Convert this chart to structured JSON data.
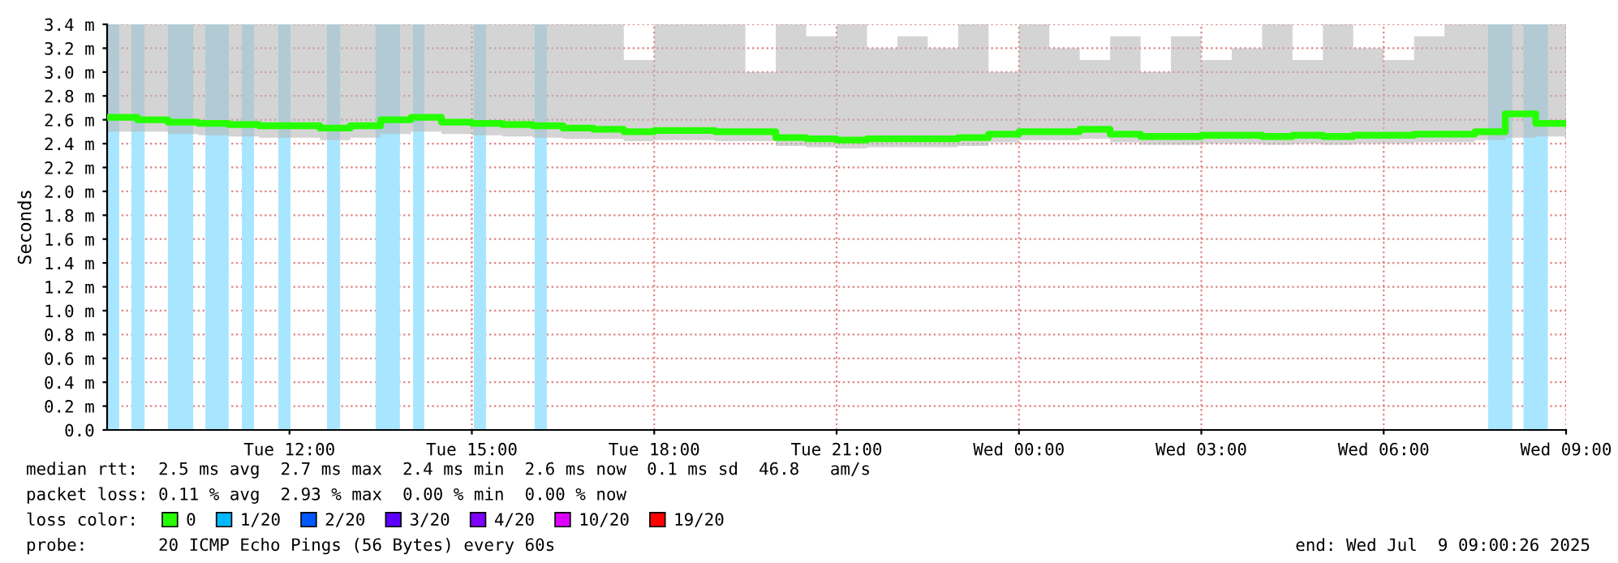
{
  "chart_data": {
    "type": "step",
    "ylabel": "Seconds",
    "x": [
      "2025-07-08T09:00",
      "2025-07-08T09:30",
      "2025-07-08T10:00",
      "2025-07-08T10:30",
      "2025-07-08T11:00",
      "2025-07-08T11:30",
      "2025-07-08T12:00",
      "2025-07-08T12:30",
      "2025-07-08T13:00",
      "2025-07-08T13:30",
      "2025-07-08T14:00",
      "2025-07-08T14:30",
      "2025-07-08T15:00",
      "2025-07-08T15:30",
      "2025-07-08T16:00",
      "2025-07-08T16:30",
      "2025-07-08T17:00",
      "2025-07-08T17:30",
      "2025-07-08T18:00",
      "2025-07-08T18:30",
      "2025-07-08T19:00",
      "2025-07-08T19:30",
      "2025-07-08T20:00",
      "2025-07-08T20:30",
      "2025-07-08T21:00",
      "2025-07-08T21:30",
      "2025-07-08T22:00",
      "2025-07-08T22:30",
      "2025-07-08T23:00",
      "2025-07-08T23:30",
      "2025-07-09T00:00",
      "2025-07-09T00:30",
      "2025-07-09T01:00",
      "2025-07-09T01:30",
      "2025-07-09T02:00",
      "2025-07-09T02:30",
      "2025-07-09T03:00",
      "2025-07-09T03:30",
      "2025-07-09T04:00",
      "2025-07-09T04:30",
      "2025-07-09T05:00",
      "2025-07-09T05:30",
      "2025-07-09T06:00",
      "2025-07-09T06:30",
      "2025-07-09T07:00",
      "2025-07-09T07:30",
      "2025-07-09T08:00",
      "2025-07-09T08:30",
      "2025-07-09T09:00"
    ],
    "xlim": [
      "2025-07-08T09:00",
      "2025-07-09T09:00"
    ],
    "xticks": [
      {
        "value": "2025-07-08T12:00",
        "label": "Tue 12:00"
      },
      {
        "value": "2025-07-08T15:00",
        "label": "Tue 15:00"
      },
      {
        "value": "2025-07-08T18:00",
        "label": "Tue 18:00"
      },
      {
        "value": "2025-07-08T21:00",
        "label": "Tue 21:00"
      },
      {
        "value": "2025-07-09T00:00",
        "label": "Wed 00:00"
      },
      {
        "value": "2025-07-09T03:00",
        "label": "Wed 03:00"
      },
      {
        "value": "2025-07-09T06:00",
        "label": "Wed 06:00"
      },
      {
        "value": "2025-07-09T09:00",
        "label": "Wed 09:00"
      }
    ],
    "ylim": [
      0,
      3.4
    ],
    "yticks": [
      {
        "value": 0,
        "label": "0.0"
      },
      {
        "value": 0.2,
        "label": "0.2 m"
      },
      {
        "value": 0.4,
        "label": "0.4 m"
      },
      {
        "value": 0.6,
        "label": "0.6 m"
      },
      {
        "value": 0.8,
        "label": "0.8 m"
      },
      {
        "value": 1.0,
        "label": "1.0 m"
      },
      {
        "value": 1.2,
        "label": "1.2 m"
      },
      {
        "value": 1.4,
        "label": "1.4 m"
      },
      {
        "value": 1.6,
        "label": "1.6 m"
      },
      {
        "value": 1.8,
        "label": "1.8 m"
      },
      {
        "value": 2.0,
        "label": "2.0 m"
      },
      {
        "value": 2.2,
        "label": "2.2 m"
      },
      {
        "value": 2.4,
        "label": "2.4 m"
      },
      {
        "value": 2.6,
        "label": "2.6 m"
      },
      {
        "value": 2.8,
        "label": "2.8 m"
      },
      {
        "value": 3.0,
        "label": "3.0 m"
      },
      {
        "value": 3.2,
        "label": "3.2 m"
      },
      {
        "value": 3.4,
        "label": "3.4 m"
      }
    ],
    "grid": true,
    "line_style": "solid",
    "legend": "bottom",
    "legend_title": "loss color:",
    "series": [
      {
        "name": "0",
        "color": "#26ff00",
        "values": [
          2.62,
          2.6,
          2.58,
          2.57,
          2.56,
          2.55,
          2.55,
          2.53,
          2.55,
          2.6,
          2.62,
          2.58,
          2.57,
          2.56,
          2.55,
          2.53,
          2.52,
          2.5,
          2.51,
          2.51,
          2.5,
          2.5,
          2.45,
          2.44,
          2.43,
          2.44,
          2.44,
          2.44,
          2.45,
          2.48,
          2.5,
          2.5,
          2.52,
          2.48,
          2.46,
          2.46,
          2.47,
          2.47,
          2.46,
          2.47,
          2.46,
          2.47,
          2.47,
          2.48,
          2.48,
          2.5,
          2.65,
          2.57,
          2.57
        ],
        "lower": [
          2.5,
          2.5,
          2.48,
          2.47,
          2.46,
          2.45,
          2.45,
          2.43,
          2.45,
          2.48,
          2.5,
          2.48,
          2.47,
          2.46,
          2.45,
          2.44,
          2.44,
          2.42,
          2.43,
          2.43,
          2.42,
          2.42,
          2.38,
          2.37,
          2.36,
          2.37,
          2.37,
          2.37,
          2.38,
          2.41,
          2.43,
          2.43,
          2.44,
          2.41,
          2.39,
          2.39,
          2.4,
          2.4,
          2.39,
          2.4,
          2.39,
          2.4,
          2.4,
          2.41,
          2.41,
          2.43,
          2.45,
          2.46,
          2.46
        ],
        "upper": [
          3.4,
          3.4,
          3.4,
          3.4,
          3.4,
          3.4,
          3.4,
          3.4,
          3.4,
          3.4,
          3.4,
          3.4,
          3.4,
          3.4,
          3.4,
          3.4,
          3.4,
          3.1,
          3.4,
          3.4,
          3.4,
          3.0,
          3.4,
          3.3,
          3.4,
          3.2,
          3.3,
          3.2,
          3.4,
          3.0,
          3.4,
          3.2,
          3.1,
          3.3,
          3.0,
          3.3,
          3.1,
          3.2,
          3.4,
          3.1,
          3.4,
          3.2,
          3.1,
          3.3,
          3.4,
          3.4,
          3.4,
          3.4,
          3.4
        ]
      },
      {
        "name": "1/20",
        "color": "#00b8ff",
        "values": [
          null,
          null,
          null,
          null,
          null,
          null,
          null,
          null,
          null,
          null,
          null,
          null,
          null,
          null,
          null,
          null,
          null,
          null,
          null,
          null,
          null,
          null,
          null,
          null,
          null,
          null,
          null,
          null,
          null,
          null,
          null,
          null,
          null,
          null,
          null,
          null,
          null,
          null,
          null,
          null,
          null,
          null,
          null,
          null,
          null,
          null,
          null,
          null,
          null
        ]
      },
      {
        "name": "2/20",
        "color": "#0059ff",
        "values": [
          null,
          null,
          null,
          null,
          null,
          null,
          null,
          null,
          null,
          null,
          null,
          null,
          null,
          null,
          null,
          null,
          null,
          null,
          null,
          null,
          null,
          null,
          null,
          null,
          null,
          null,
          null,
          null,
          null,
          null,
          null,
          null,
          null,
          null,
          null,
          null,
          null,
          null,
          null,
          null,
          null,
          null,
          null,
          null,
          null,
          null,
          null,
          null,
          null
        ]
      },
      {
        "name": "3/20",
        "color": "#5e00ff",
        "values": [
          null,
          null,
          null,
          null,
          null,
          null,
          null,
          null,
          null,
          null,
          null,
          null,
          null,
          null,
          null,
          null,
          null,
          null,
          null,
          null,
          null,
          null,
          null,
          null,
          null,
          null,
          null,
          null,
          null,
          null,
          null,
          null,
          null,
          null,
          null,
          null,
          null,
          null,
          null,
          null,
          null,
          null,
          null,
          null,
          null,
          null,
          null,
          null,
          null
        ]
      },
      {
        "name": "4/20",
        "color": "#7e00ff",
        "values": [
          null,
          null,
          null,
          null,
          null,
          null,
          null,
          null,
          null,
          null,
          null,
          null,
          null,
          null,
          null,
          null,
          null,
          null,
          null,
          null,
          null,
          null,
          null,
          null,
          null,
          null,
          null,
          null,
          null,
          null,
          null,
          null,
          null,
          null,
          null,
          null,
          null,
          null,
          null,
          null,
          null,
          null,
          null,
          null,
          null,
          null,
          null,
          null,
          null
        ]
      },
      {
        "name": "10/20",
        "color": "#dd00ff",
        "values": [
          null,
          null,
          null,
          null,
          null,
          null,
          null,
          null,
          null,
          null,
          null,
          null,
          null,
          null,
          null,
          null,
          null,
          null,
          null,
          null,
          null,
          null,
          null,
          null,
          null,
          null,
          null,
          null,
          null,
          null,
          null,
          null,
          null,
          null,
          null,
          null,
          null,
          null,
          null,
          null,
          null,
          null,
          null,
          null,
          null,
          null,
          null,
          null,
          null
        ]
      },
      {
        "name": "19/20",
        "color": "#ff0000",
        "values": [
          null,
          null,
          null,
          null,
          null,
          null,
          null,
          null,
          null,
          null,
          null,
          null,
          null,
          null,
          null,
          null,
          null,
          null,
          null,
          null,
          null,
          null,
          null,
          null,
          null,
          null,
          null,
          null,
          null,
          null,
          null,
          null,
          null,
          null,
          null,
          null,
          null,
          null,
          null,
          null,
          null,
          null,
          null,
          null,
          null,
          null,
          null,
          null,
          null
        ]
      }
    ],
    "bands": [
      {
        "axis": "x",
        "from": "2025-07-08T09:00",
        "to": "2025-07-08T09:12",
        "color": "#a8e6ff"
      },
      {
        "axis": "x",
        "from": "2025-07-08T09:24",
        "to": "2025-07-08T09:37",
        "color": "#a8e6ff"
      },
      {
        "axis": "x",
        "from": "2025-07-08T10:00",
        "to": "2025-07-08T10:25",
        "color": "#a8e6ff"
      },
      {
        "axis": "x",
        "from": "2025-07-08T10:37",
        "to": "2025-07-08T11:00",
        "color": "#a8e6ff"
      },
      {
        "axis": "x",
        "from": "2025-07-08T11:13",
        "to": "2025-07-08T11:25",
        "color": "#a8e6ff"
      },
      {
        "axis": "x",
        "from": "2025-07-08T11:49",
        "to": "2025-07-08T12:01",
        "color": "#a8e6ff"
      },
      {
        "axis": "x",
        "from": "2025-07-08T12:37",
        "to": "2025-07-08T12:50",
        "color": "#a8e6ff"
      },
      {
        "axis": "x",
        "from": "2025-07-08T13:25",
        "to": "2025-07-08T13:49",
        "color": "#a8e6ff"
      },
      {
        "axis": "x",
        "from": "2025-07-08T14:02",
        "to": "2025-07-08T14:13",
        "color": "#a8e6ff"
      },
      {
        "axis": "x",
        "from": "2025-07-08T15:02",
        "to": "2025-07-08T15:14",
        "color": "#a8e6ff"
      },
      {
        "axis": "x",
        "from": "2025-07-08T16:02",
        "to": "2025-07-08T16:14",
        "color": "#a8e6ff"
      },
      {
        "axis": "x",
        "from": "2025-07-09T07:43",
        "to": "2025-07-09T08:07",
        "color": "#a8e6ff"
      },
      {
        "axis": "x",
        "from": "2025-07-09T08:18",
        "to": "2025-07-09T08:42",
        "color": "#a8e6ff"
      }
    ],
    "annotations": [
      "median rtt:  2.5 ms avg  2.7 ms max  2.4 ms min  2.6 ms now  0.1 ms sd  46.8   am/s",
      "packet loss: 0.11 % avg  2.93 % max  0.00 % min  0.00 % now",
      "probe:       20 ICMP Echo Pings (56 Bytes) every 60s",
      "end: Wed Jul  9 09:00:26 2025"
    ]
  }
}
